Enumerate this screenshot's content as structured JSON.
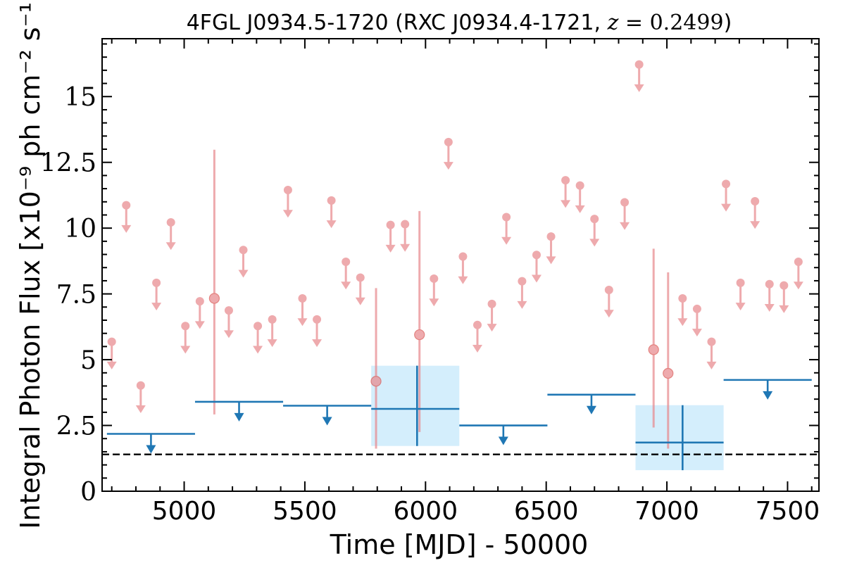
{
  "chart_data": {
    "type": "scatter",
    "title": {
      "source": "4FGL J0934.5-1720",
      "open": " (RXC J0934.4-1721, ",
      "z_symbol": "z",
      "eq": " = ",
      "z_value": "0.2499",
      "close": ")"
    },
    "xlabel": "Time [MJD] - 50000",
    "ylabel": "Integral Photon Flux [x10⁻⁹ ph cm⁻² s⁻¹]",
    "xlim": [
      4660,
      7630
    ],
    "ylim": [
      0,
      17.2
    ],
    "xticks": [
      "5000",
      "5500",
      "6000",
      "6500",
      "7000",
      "7500"
    ],
    "yticks": [
      "0",
      "2.5",
      "5",
      "7.5",
      "10",
      "12.5",
      "15"
    ],
    "grid": false,
    "colors": {
      "monthly": "#e88a8e",
      "yearly": "#1f77b4",
      "yearly_band": "#d4eefc",
      "mean_line": "#000000"
    },
    "series": [
      {
        "kind": "monthly_upper_limits",
        "points": [
          [
            4700,
            5.68
          ],
          [
            4760,
            10.87
          ],
          [
            4820,
            4.02
          ],
          [
            4885,
            7.92
          ],
          [
            4945,
            10.22
          ],
          [
            5005,
            6.28
          ],
          [
            5065,
            7.22
          ],
          [
            5185,
            6.87
          ],
          [
            5245,
            9.17
          ],
          [
            5305,
            6.28
          ],
          [
            5365,
            6.53
          ],
          [
            5430,
            11.45
          ],
          [
            5490,
            7.33
          ],
          [
            5550,
            6.53
          ],
          [
            5610,
            11.05
          ],
          [
            5670,
            8.72
          ],
          [
            5730,
            8.12
          ],
          [
            5855,
            10.12
          ],
          [
            5915,
            10.15
          ],
          [
            6035,
            8.08
          ],
          [
            6095,
            13.27
          ],
          [
            6155,
            8.92
          ],
          [
            6215,
            6.32
          ],
          [
            6275,
            7.12
          ],
          [
            6335,
            10.42
          ],
          [
            6400,
            7.98
          ],
          [
            6460,
            8.98
          ],
          [
            6520,
            9.68
          ],
          [
            6580,
            11.82
          ],
          [
            6640,
            11.62
          ],
          [
            6700,
            10.35
          ],
          [
            6760,
            7.65
          ],
          [
            6825,
            10.98
          ],
          [
            6885,
            16.22
          ],
          [
            7065,
            7.33
          ],
          [
            7125,
            6.93
          ],
          [
            7185,
            5.68
          ],
          [
            7245,
            11.68
          ],
          [
            7305,
            7.92
          ],
          [
            7365,
            11.02
          ],
          [
            7425,
            7.87
          ],
          [
            7485,
            7.82
          ],
          [
            7545,
            8.72
          ]
        ]
      },
      {
        "kind": "monthly_detections",
        "points": [
          {
            "x": 5125,
            "y": 7.33,
            "lo": 2.92,
            "hi": 12.98
          },
          {
            "x": 5795,
            "y": 4.18,
            "lo": 1.62,
            "hi": 7.72
          },
          {
            "x": 5975,
            "y": 5.95,
            "lo": 2.25,
            "hi": 10.65
          },
          {
            "x": 6945,
            "y": 5.38,
            "lo": 2.42,
            "hi": 9.22
          },
          {
            "x": 7005,
            "y": 4.48,
            "lo": 1.62,
            "hi": 8.32
          }
        ]
      },
      {
        "kind": "yearly_upper_limits",
        "points": [
          {
            "x0": 4680,
            "x1": 5045,
            "y": 2.18
          },
          {
            "x0": 5045,
            "x1": 5410,
            "y": 3.4
          },
          {
            "x0": 5410,
            "x1": 5775,
            "y": 3.25
          },
          {
            "x0": 6140,
            "x1": 6505,
            "y": 2.5
          },
          {
            "x0": 6505,
            "x1": 6870,
            "y": 3.67
          },
          {
            "x0": 7235,
            "x1": 7600,
            "y": 4.23
          }
        ]
      },
      {
        "kind": "yearly_detections",
        "points": [
          {
            "x0": 5775,
            "x1": 6140,
            "xc": 5965,
            "y": 3.13,
            "lo": 1.72,
            "hi": 4.77
          },
          {
            "x0": 6870,
            "x1": 7235,
            "xc": 7065,
            "y": 1.85,
            "lo": 0.8,
            "hi": 3.27
          }
        ]
      },
      {
        "kind": "mean_flux",
        "y": 1.4
      }
    ]
  }
}
